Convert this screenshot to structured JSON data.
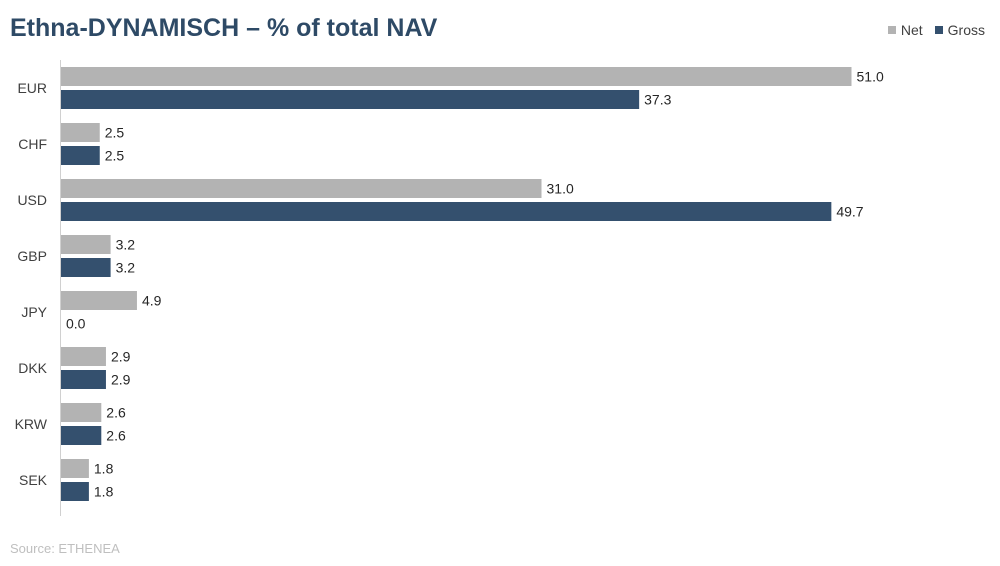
{
  "colors": {
    "net": "#b3b3b3",
    "gross": "#34506e",
    "title": "#2e4a66",
    "axis": "#d0d0d0",
    "source": "#bfbfbf"
  },
  "chart_data": {
    "type": "bar",
    "orientation": "horizontal",
    "title": "Ethna-DYNAMISCH – % of total NAV",
    "xlabel": "",
    "ylabel": "",
    "xlim": [
      0,
      60
    ],
    "grid": false,
    "legend_position": "top-right",
    "categories": [
      "EUR",
      "CHF",
      "USD",
      "GBP",
      "JPY",
      "DKK",
      "KRW",
      "SEK"
    ],
    "series": [
      {
        "name": "Net",
        "values": [
          51.0,
          2.5,
          31.0,
          3.2,
          4.9,
          2.9,
          2.6,
          1.8
        ],
        "labels": [
          "51.0",
          "2.5",
          "31.0",
          "3.2",
          "4.9",
          "2.9",
          "2.6",
          "1.8"
        ]
      },
      {
        "name": "Gross",
        "values": [
          37.3,
          2.5,
          49.7,
          3.2,
          0.0,
          2.9,
          2.6,
          1.8
        ],
        "labels": [
          "37.3",
          "2.5",
          "49.7",
          "3.2",
          "0.0",
          "2.9",
          "2.6",
          "1.8"
        ]
      }
    ],
    "source": "Source: ETHENEA"
  }
}
